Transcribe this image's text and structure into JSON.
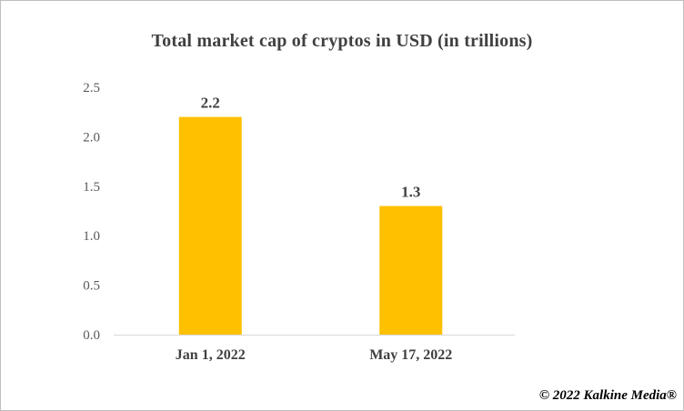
{
  "chart_data": {
    "type": "bar",
    "title": "Total market cap of cryptos in USD (in trillions)",
    "categories": [
      "Jan 1, 2022",
      "May 17, 2022"
    ],
    "values": [
      2.2,
      1.3
    ],
    "data_labels": [
      "2.2",
      "1.3"
    ],
    "ylim": [
      0,
      2.5
    ],
    "yticks": [
      "0.0",
      "0.5",
      "1.0",
      "1.5",
      "2.0",
      "2.5"
    ],
    "grid": false,
    "bar_color": "#FFC000"
  },
  "watermark": "© 2022 Kalkine Media®"
}
